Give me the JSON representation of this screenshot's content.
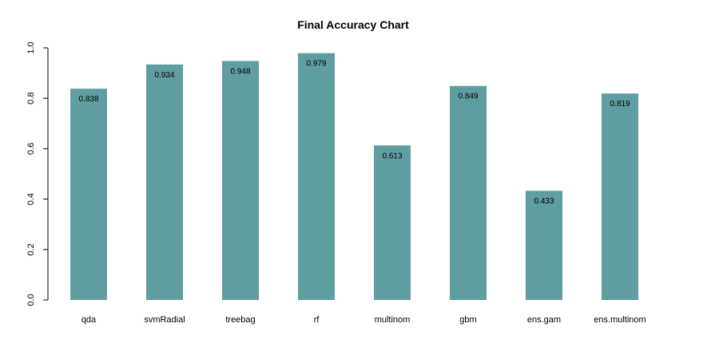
{
  "chart_data": {
    "type": "bar",
    "title": "Final Accuracy Chart",
    "xlabel": "",
    "ylabel": "",
    "categories": [
      "qda",
      "svmRadial",
      "treebag",
      "rf",
      "multinom",
      "gbm",
      "ens.gam",
      "ens.multinom"
    ],
    "values": [
      0.838,
      0.934,
      0.948,
      0.979,
      0.613,
      0.849,
      0.433,
      0.819
    ],
    "value_labels": [
      "0.838",
      "0.934",
      "0.948",
      "0.979",
      "0.613",
      "0.849",
      "0.433",
      "0.819"
    ],
    "ylim": [
      0,
      1
    ],
    "yticks": [
      "0.0",
      "0.2",
      "0.4",
      "0.6",
      "0.8",
      "1.0"
    ],
    "bar_color": "#5f9ea0",
    "grid": false,
    "legend": false
  }
}
